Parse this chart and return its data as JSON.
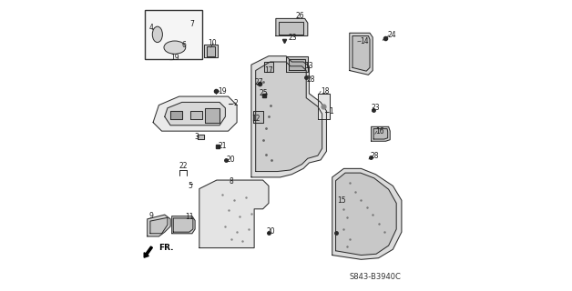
{
  "title": "",
  "diagram_code": "S843-B3940C",
  "fr_label": "FR.",
  "background_color": "#ffffff",
  "line_color": "#2a2a2a",
  "text_color": "#1a1a1a",
  "fig_width": 6.28,
  "fig_height": 3.2,
  "dpi": 100
}
